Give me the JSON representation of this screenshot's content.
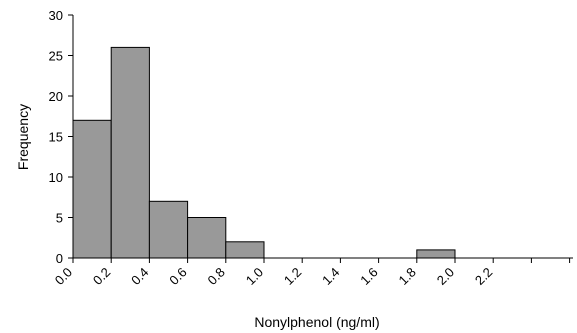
{
  "chart_data": {
    "type": "bar",
    "categories": [
      "0.0",
      "0.2",
      "0.4",
      "0.6",
      "0.8",
      "1.0",
      "1.2",
      "1.4",
      "1.6",
      "1.8",
      "2.0",
      "2.2"
    ],
    "values": [
      17,
      26,
      7,
      5,
      2,
      0,
      0,
      0,
      0,
      1,
      0,
      0
    ],
    "xlabel": "Nonylphenol (ng/ml)",
    "ylabel": "Frequency",
    "ylim": [
      0,
      30
    ],
    "yticks": [
      "0",
      "5",
      "10",
      "15",
      "20",
      "25",
      "30"
    ],
    "grid": false,
    "bar_color": "#999999"
  }
}
